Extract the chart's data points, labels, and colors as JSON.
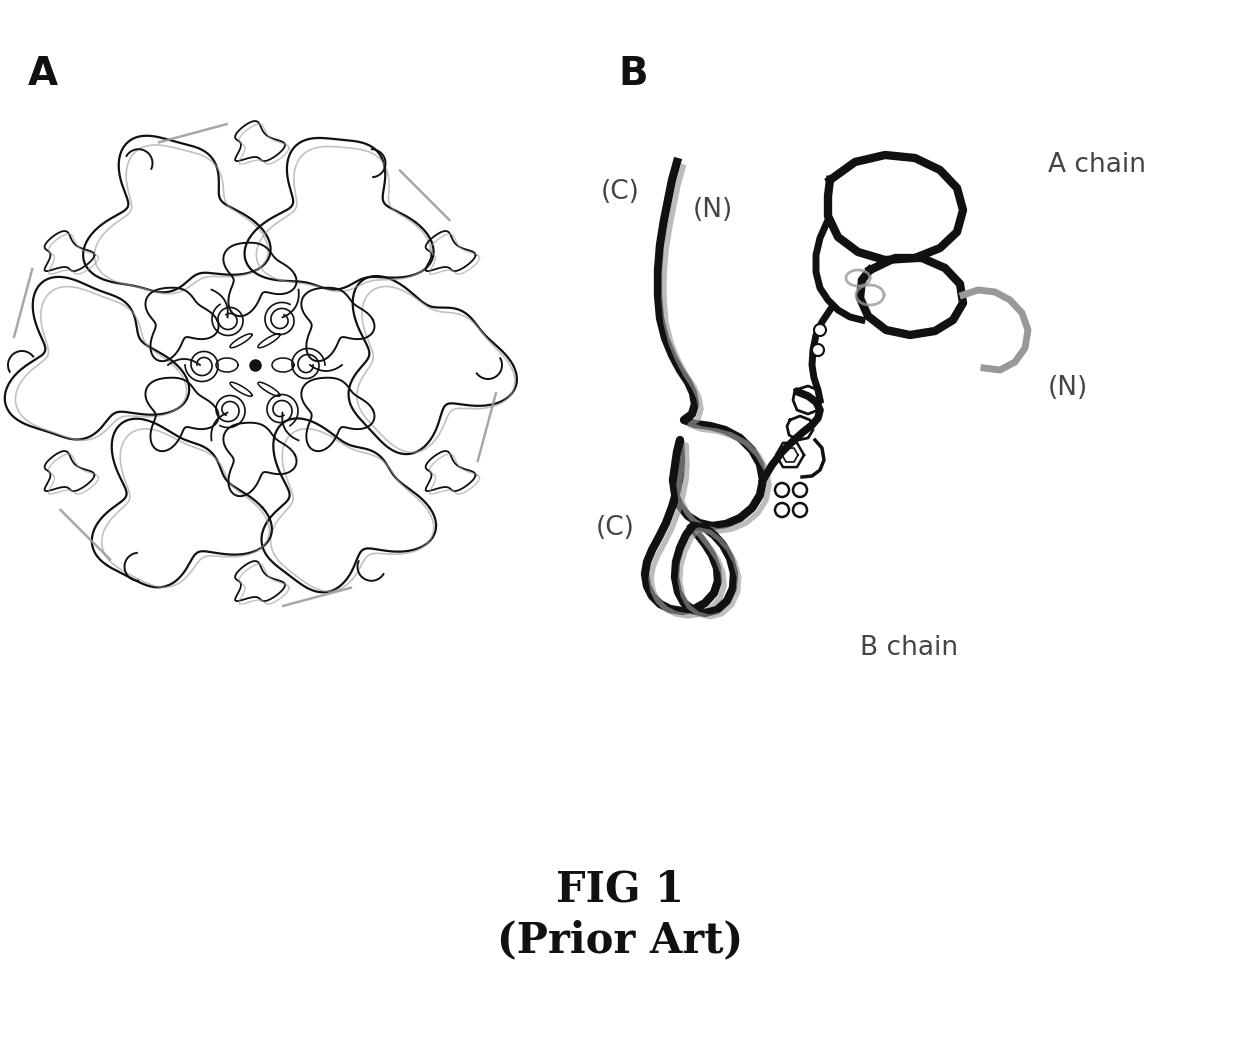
{
  "title_line1": "FIG 1",
  "title_line2": "(Prior Art)",
  "label_A": "A",
  "label_B": "B",
  "label_A_chain": "A chain",
  "label_B_chain": "B chain",
  "label_N_top": "(N)",
  "label_N_right": "(N)",
  "label_C_top": "(C)",
  "label_C_bottom": "(C)",
  "bg_color": "#ffffff",
  "line_color": "#111111",
  "gray_color": "#999999",
  "dark_gray": "#444444",
  "title_fontsize": 30,
  "label_fontsize": 28,
  "annotation_fontsize": 19
}
